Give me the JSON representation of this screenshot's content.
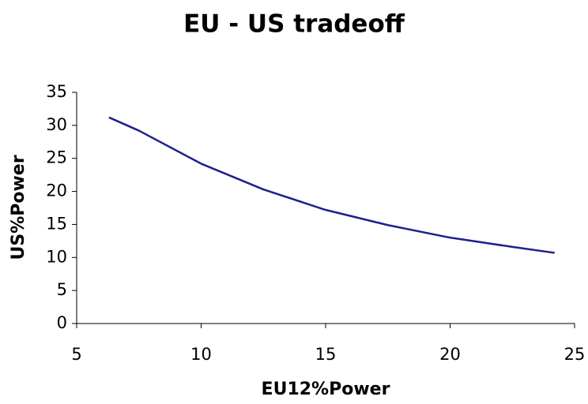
{
  "chart_data": {
    "type": "line",
    "title": "EU - US tradeoff",
    "x_label": "EU12%Power",
    "y_label": "US%Power",
    "x": [
      6.3,
      7.5,
      10,
      12.5,
      15,
      17.5,
      20,
      22.5,
      24.2
    ],
    "series": [
      {
        "name": "US%Power",
        "color": "#1f1f8f",
        "values": [
          31.2,
          29.2,
          24.2,
          20.3,
          17.2,
          14.9,
          13.0,
          11.6,
          10.7
        ]
      }
    ],
    "xlim": [
      5,
      25
    ],
    "xticks": [
      5,
      10,
      15,
      20,
      25
    ],
    "ylim": [
      0,
      35
    ],
    "yticks": [
      0,
      5,
      10,
      15,
      20,
      25,
      30,
      35
    ],
    "grid": false
  }
}
